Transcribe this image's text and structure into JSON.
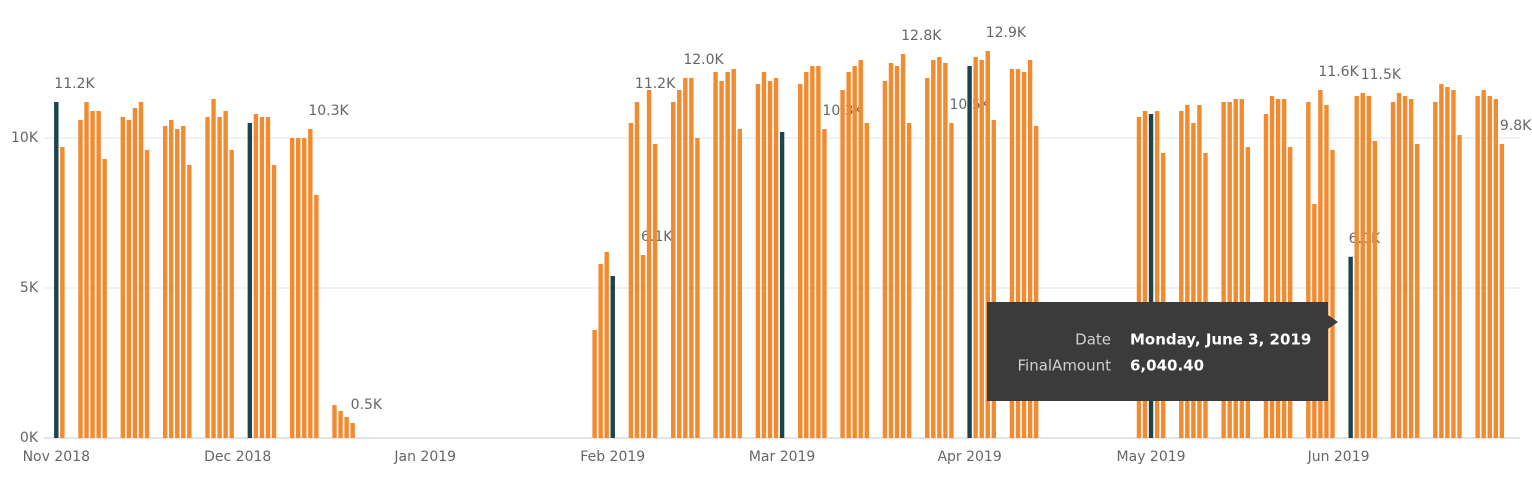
{
  "chart_data": {
    "type": "bar",
    "x": [
      "2018-11-01",
      "2018-11-02",
      "2018-11-05",
      "2018-11-06",
      "2018-11-07",
      "2018-11-08",
      "2018-11-09",
      "2018-11-12",
      "2018-11-13",
      "2018-11-14",
      "2018-11-15",
      "2018-11-16",
      "2018-11-19",
      "2018-11-20",
      "2018-11-21",
      "2018-11-22",
      "2018-11-23",
      "2018-11-26",
      "2018-11-27",
      "2018-11-28",
      "2018-11-29",
      "2018-11-30",
      "2018-12-03",
      "2018-12-04",
      "2018-12-05",
      "2018-12-06",
      "2018-12-07",
      "2018-12-10",
      "2018-12-11",
      "2018-12-12",
      "2018-12-13",
      "2018-12-14",
      "2018-12-17",
      "2018-12-18",
      "2018-12-19",
      "2018-12-20",
      "2019-01-29",
      "2019-01-30",
      "2019-01-31",
      "2019-02-01",
      "2019-02-04",
      "2019-02-05",
      "2019-02-06",
      "2019-02-07",
      "2019-02-08",
      "2019-02-11",
      "2019-02-12",
      "2019-02-13",
      "2019-02-14",
      "2019-02-15",
      "2019-02-18",
      "2019-02-19",
      "2019-02-20",
      "2019-02-21",
      "2019-02-22",
      "2019-02-25",
      "2019-02-26",
      "2019-02-27",
      "2019-02-28",
      "2019-03-01",
      "2019-03-04",
      "2019-03-05",
      "2019-03-06",
      "2019-03-07",
      "2019-03-08",
      "2019-03-11",
      "2019-03-12",
      "2019-03-13",
      "2019-03-14",
      "2019-03-15",
      "2019-03-18",
      "2019-03-19",
      "2019-03-20",
      "2019-03-21",
      "2019-03-22",
      "2019-03-25",
      "2019-03-26",
      "2019-03-27",
      "2019-03-28",
      "2019-03-29",
      "2019-04-01",
      "2019-04-02",
      "2019-04-03",
      "2019-04-04",
      "2019-04-05",
      "2019-04-08",
      "2019-04-09",
      "2019-04-10",
      "2019-04-11",
      "2019-04-12",
      "2019-04-29",
      "2019-04-30",
      "2019-05-01",
      "2019-05-02",
      "2019-05-03",
      "2019-05-06",
      "2019-05-07",
      "2019-05-08",
      "2019-05-09",
      "2019-05-10",
      "2019-05-13",
      "2019-05-14",
      "2019-05-15",
      "2019-05-16",
      "2019-05-17",
      "2019-05-20",
      "2019-05-21",
      "2019-05-22",
      "2019-05-23",
      "2019-05-24",
      "2019-05-27",
      "2019-05-28",
      "2019-05-29",
      "2019-05-30",
      "2019-05-31",
      "2019-06-03",
      "2019-06-04",
      "2019-06-05",
      "2019-06-06",
      "2019-06-07",
      "2019-06-10",
      "2019-06-11",
      "2019-06-12",
      "2019-06-13",
      "2019-06-14",
      "2019-06-17",
      "2019-06-18",
      "2019-06-19",
      "2019-06-20",
      "2019-06-21",
      "2019-06-24",
      "2019-06-25",
      "2019-06-26",
      "2019-06-27",
      "2019-06-28"
    ],
    "values": [
      11200,
      9700,
      10600,
      11200,
      10900,
      10900,
      9300,
      10700,
      10600,
      11000,
      11200,
      9600,
      10400,
      10600,
      10300,
      10400,
      9100,
      10700,
      11300,
      10700,
      10900,
      9600,
      10500,
      10800,
      10700,
      10700,
      9100,
      10000,
      10000,
      10000,
      10300,
      8100,
      1100,
      900,
      700,
      500,
      3600,
      5800,
      6200,
      5400,
      10500,
      11200,
      6100,
      11600,
      9800,
      11200,
      11600,
      12000,
      12000,
      10000,
      12200,
      11900,
      12200,
      12300,
      10300,
      11800,
      12200,
      11900,
      12000,
      10200,
      11800,
      12200,
      12400,
      12400,
      10300,
      11600,
      12200,
      12400,
      12600,
      10500,
      11900,
      12500,
      12400,
      12800,
      10500,
      12000,
      12600,
      12700,
      12500,
      10500,
      12400,
      12700,
      12600,
      12900,
      10600,
      12300,
      12300,
      12200,
      12600,
      10400,
      10700,
      10900,
      10800,
      10900,
      9500,
      10900,
      11100,
      10500,
      11100,
      9500,
      11200,
      11200,
      11300,
      11300,
      9700,
      10800,
      11400,
      11300,
      11300,
      9700,
      11200,
      7800,
      11600,
      11100,
      9600,
      6040.4,
      11400,
      11500,
      11400,
      9900,
      11200,
      11500,
      11400,
      11300,
      9800,
      11200,
      11800,
      11700,
      11600,
      10100,
      11400,
      11600,
      11400,
      11300,
      9800
    ],
    "value_labels": [
      "11.2K",
      null,
      null,
      null,
      null,
      null,
      null,
      null,
      null,
      null,
      null,
      null,
      null,
      null,
      null,
      null,
      null,
      null,
      null,
      null,
      null,
      null,
      null,
      null,
      null,
      null,
      null,
      null,
      null,
      null,
      "10.3K",
      null,
      null,
      null,
      null,
      "0.5K",
      null,
      null,
      null,
      null,
      null,
      "11.2K",
      "6.1K",
      null,
      null,
      null,
      null,
      "12.0K",
      null,
      null,
      null,
      null,
      null,
      null,
      null,
      null,
      null,
      null,
      null,
      null,
      null,
      null,
      null,
      null,
      "10.3K",
      null,
      null,
      null,
      null,
      null,
      null,
      null,
      null,
      "12.8K",
      null,
      null,
      null,
      null,
      null,
      "10.5K",
      null,
      null,
      null,
      "12.9K",
      null,
      null,
      null,
      null,
      null,
      null,
      null,
      null,
      null,
      null,
      null,
      null,
      null,
      null,
      null,
      null,
      null,
      null,
      null,
      null,
      null,
      null,
      null,
      null,
      null,
      null,
      null,
      null,
      "11.6K",
      null,
      null,
      "6.0K",
      null,
      "11.5K",
      null,
      null,
      null,
      null,
      null,
      null,
      null,
      null,
      null,
      null,
      null,
      null,
      null,
      null,
      null,
      null,
      "9.8K"
    ],
    "colors": [
      "#1b454d",
      "#f28a30",
      "#f28a30",
      "#f28a30",
      "#f28a30",
      "#f28a30",
      "#f28a30",
      "#f28a30",
      "#f28a30",
      "#f28a30",
      "#f28a30",
      "#f28a30",
      "#f28a30",
      "#f28a30",
      "#f28a30",
      "#f28a30",
      "#f28a30",
      "#f28a30",
      "#f28a30",
      "#f28a30",
      "#f28a30",
      "#f28a30",
      "#1b454d",
      "#f28a30",
      "#f28a30",
      "#f28a30",
      "#f28a30",
      "#f28a30",
      "#f28a30",
      "#f28a30",
      "#f28a30",
      "#f28a30",
      "#f28a30",
      "#f28a30",
      "#f28a30",
      "#f28a30",
      "#f28a30",
      "#f28a30",
      "#f28a30",
      "#1b454d",
      "#f28a30",
      "#f28a30",
      "#f28a30",
      "#f28a30",
      "#f28a30",
      "#f28a30",
      "#f28a30",
      "#f28a30",
      "#f28a30",
      "#f28a30",
      "#f28a30",
      "#f28a30",
      "#f28a30",
      "#f28a30",
      "#f28a30",
      "#f28a30",
      "#f28a30",
      "#f28a30",
      "#f28a30",
      "#1b454d",
      "#f28a30",
      "#f28a30",
      "#f28a30",
      "#f28a30",
      "#f28a30",
      "#f28a30",
      "#f28a30",
      "#f28a30",
      "#f28a30",
      "#f28a30",
      "#f28a30",
      "#f28a30",
      "#f28a30",
      "#f28a30",
      "#f28a30",
      "#f28a30",
      "#f28a30",
      "#f28a30",
      "#f28a30",
      "#f28a30",
      "#1b454d",
      "#f28a30",
      "#f28a30",
      "#f28a30",
      "#f28a30",
      "#f28a30",
      "#f28a30",
      "#f28a30",
      "#f28a30",
      "#f28a30",
      "#f28a30",
      "#f28a30",
      "#1b454d",
      "#f28a30",
      "#f28a30",
      "#f28a30",
      "#f28a30",
      "#f28a30",
      "#f28a30",
      "#f28a30",
      "#f28a30",
      "#f28a30",
      "#f28a30",
      "#f28a30",
      "#f28a30",
      "#f28a30",
      "#f28a30",
      "#f28a30",
      "#f28a30",
      "#f28a30",
      "#f28a30",
      "#f28a30",
      "#f28a30",
      "#f28a30",
      "#f28a30",
      "#1b454d",
      "#f28a30",
      "#f28a30",
      "#f28a30",
      "#f28a30",
      "#f28a30",
      "#f28a30",
      "#f28a30",
      "#f28a30",
      "#f28a30",
      "#f28a30",
      "#f28a30",
      "#f28a30",
      "#f28a30",
      "#f28a30",
      "#f28a30",
      "#f28a30",
      "#f28a30",
      "#f28a30",
      "#f28a30"
    ],
    "xlim": [
      "2018-10-26",
      "2019-07-01"
    ],
    "xticks": [
      {
        "value": "2018-11-01",
        "label": "Nov 2018"
      },
      {
        "value": "2018-12-01",
        "label": "Dec 2018"
      },
      {
        "value": "2019-01-01",
        "label": "Jan 2019"
      },
      {
        "value": "2019-02-01",
        "label": "Feb 2019"
      },
      {
        "value": "2019-03-01",
        "label": "Mar 2019"
      },
      {
        "value": "2019-04-01",
        "label": "Apr 2019"
      },
      {
        "value": "2019-05-01",
        "label": "May 2019"
      },
      {
        "value": "2019-06-01",
        "label": "Jun 2019"
      }
    ],
    "ylim": [
      0,
      13600
    ],
    "yticks": [
      {
        "value": 0,
        "label": "0K"
      },
      {
        "value": 5000,
        "label": "5K"
      },
      {
        "value": 10000,
        "label": "10K"
      }
    ],
    "grid": true
  },
  "tooltip": {
    "rows": [
      {
        "label": "Date",
        "value": "Monday, June 3, 2019"
      },
      {
        "label": "FinalAmount",
        "value": "6,040.40"
      }
    ]
  }
}
